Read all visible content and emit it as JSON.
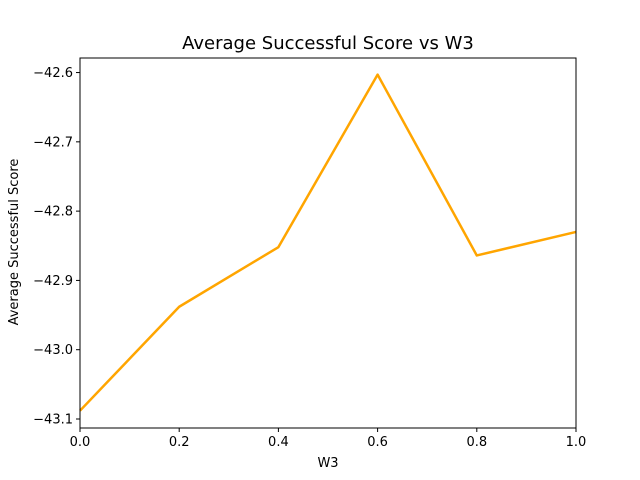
{
  "chart_data": {
    "type": "line",
    "title": "Average Successful Score vs W3",
    "xlabel": "W3",
    "ylabel": "Average Successful Score",
    "xlim": [
      0.0,
      1.0
    ],
    "ylim": [
      -43.113,
      -42.579
    ],
    "grid": false,
    "x": [
      0.0,
      0.2,
      0.4,
      0.6,
      0.8,
      1.0
    ],
    "series": [
      {
        "values": [
          -43.088,
          -42.938,
          -42.852,
          -42.603,
          -42.864,
          -42.83
        ],
        "color": "#FFA500"
      }
    ],
    "xticks": [
      0.0,
      0.2,
      0.4,
      0.6,
      0.8,
      1.0
    ],
    "xtick_labels": [
      "0.0",
      "0.2",
      "0.4",
      "0.6",
      "0.8",
      "1.0"
    ],
    "yticks": [
      -43.1,
      -43.0,
      -42.9,
      -42.8,
      -42.7,
      -42.6
    ],
    "ytick_labels": [
      "−43.1",
      "−43.0",
      "−42.9",
      "−42.8",
      "−42.7",
      "−42.6"
    ]
  }
}
